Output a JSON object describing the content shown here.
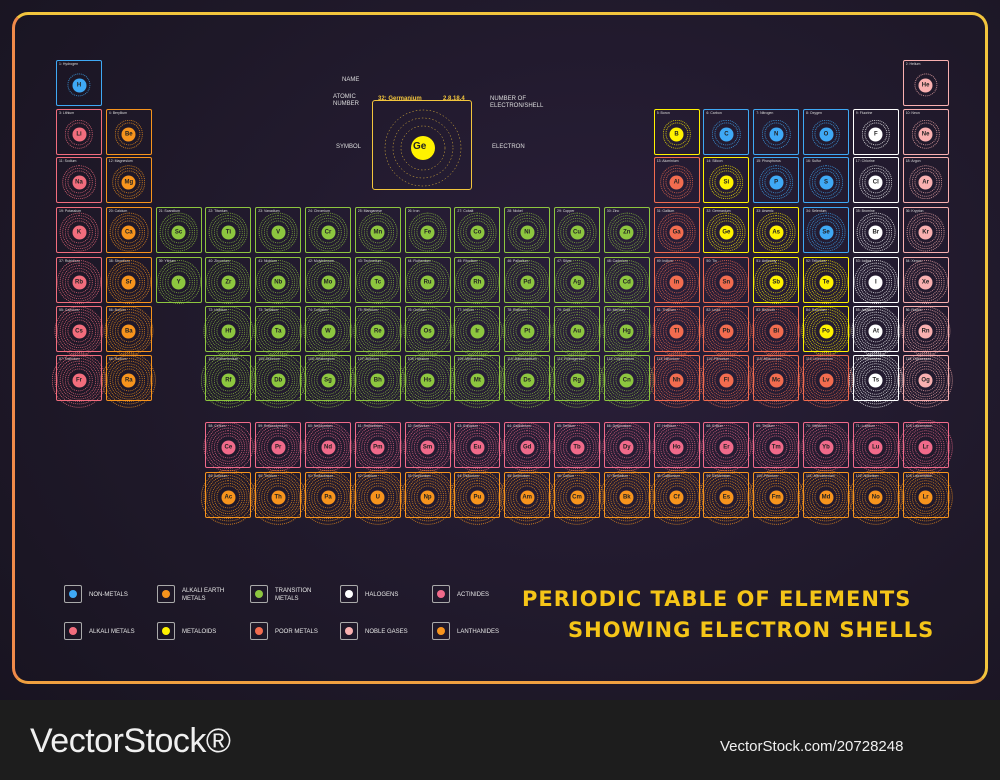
{
  "title_line1": "PERIODIC TABLE OF ELEMENTS",
  "title_line2": "SHOWING ELECTRON SHELLS",
  "watermark_left": "VectorStock®",
  "watermark_right": "VectorStock.com/20728248",
  "key": {
    "name_label": "NAME",
    "atomic_number_label": "ATOMIC NUMBER",
    "element_label": "32: Germanium",
    "shells_value": "2,8,18,4",
    "shells_label": "NUMBER OF ELECTRON/SHELL",
    "symbol_label": "SYMBOL",
    "symbol": "Ge",
    "electron_label": "ELECTRON"
  },
  "legend": [
    {
      "label": "NON-METALS",
      "color": "#3fa9f5"
    },
    {
      "label": "ALKALI EARTH METALS",
      "color": "#f7941d"
    },
    {
      "label": "TRANSITION METALS",
      "color": "#8dc63f"
    },
    {
      "label": "HALOGENS",
      "color": "#ffffff"
    },
    {
      "label": "ACTINIDES",
      "color": "#f06a8a"
    },
    {
      "label": "ALKALI METALS",
      "color": "#f26d7d"
    },
    {
      "label": "METALOIDS",
      "color": "#fff200"
    },
    {
      "label": "POOR METALS",
      "color": "#f26c4f"
    },
    {
      "label": "NOBLE GASES",
      "color": "#f9b0b0"
    },
    {
      "label": "LANTHANIDES",
      "color": "#f7941d"
    }
  ],
  "category_colors": {
    "nm": "#3fa9f5",
    "ae": "#f7941d",
    "tm": "#8dc63f",
    "ha": "#ffffff",
    "ac": "#f06a8a",
    "am": "#f26d7d",
    "md": "#fff200",
    "pm": "#f26c4f",
    "ng": "#f9b0b0",
    "la": "#f7941d"
  },
  "elements": [
    {
      "sym": "H",
      "n": 1,
      "name": "Hydrogen",
      "cat": "nm",
      "col": 1,
      "row": 1
    },
    {
      "sym": "He",
      "n": 2,
      "name": "Helium",
      "cat": "ng",
      "col": 18,
      "row": 1
    },
    {
      "sym": "Li",
      "n": 3,
      "name": "Lithium",
      "cat": "am",
      "col": 1,
      "row": 2
    },
    {
      "sym": "Be",
      "n": 4,
      "name": "Beryllium",
      "cat": "ae",
      "col": 2,
      "row": 2
    },
    {
      "sym": "B",
      "n": 5,
      "name": "Boron",
      "cat": "md",
      "col": 13,
      "row": 2
    },
    {
      "sym": "C",
      "n": 6,
      "name": "Carbon",
      "cat": "nm",
      "col": 14,
      "row": 2
    },
    {
      "sym": "N",
      "n": 7,
      "name": "Nitrogen",
      "cat": "nm",
      "col": 15,
      "row": 2
    },
    {
      "sym": "O",
      "n": 8,
      "name": "Oxygen",
      "cat": "nm",
      "col": 16,
      "row": 2
    },
    {
      "sym": "F",
      "n": 9,
      "name": "Fluorine",
      "cat": "ha",
      "col": 17,
      "row": 2
    },
    {
      "sym": "Ne",
      "n": 10,
      "name": "Neon",
      "cat": "ng",
      "col": 18,
      "row": 2
    },
    {
      "sym": "Na",
      "n": 11,
      "name": "Sodium",
      "cat": "am",
      "col": 1,
      "row": 3
    },
    {
      "sym": "Mg",
      "n": 12,
      "name": "Magnesium",
      "cat": "ae",
      "col": 2,
      "row": 3
    },
    {
      "sym": "Al",
      "n": 13,
      "name": "Aluminium",
      "cat": "pm",
      "col": 13,
      "row": 3
    },
    {
      "sym": "Si",
      "n": 14,
      "name": "Silicon",
      "cat": "md",
      "col": 14,
      "row": 3
    },
    {
      "sym": "P",
      "n": 15,
      "name": "Phosphorus",
      "cat": "nm",
      "col": 15,
      "row": 3
    },
    {
      "sym": "S",
      "n": 16,
      "name": "Sulfur",
      "cat": "nm",
      "col": 16,
      "row": 3
    },
    {
      "sym": "Cl",
      "n": 17,
      "name": "Chlorine",
      "cat": "ha",
      "col": 17,
      "row": 3
    },
    {
      "sym": "Ar",
      "n": 18,
      "name": "Argon",
      "cat": "ng",
      "col": 18,
      "row": 3
    },
    {
      "sym": "K",
      "n": 19,
      "name": "Potassium",
      "cat": "am",
      "col": 1,
      "row": 4
    },
    {
      "sym": "Ca",
      "n": 20,
      "name": "Calcium",
      "cat": "ae",
      "col": 2,
      "row": 4
    },
    {
      "sym": "Sc",
      "n": 21,
      "name": "Scandium",
      "cat": "tm",
      "col": 3,
      "row": 4
    },
    {
      "sym": "Ti",
      "n": 22,
      "name": "Titanium",
      "cat": "tm",
      "col": 4,
      "row": 4
    },
    {
      "sym": "V",
      "n": 23,
      "name": "Vanadium",
      "cat": "tm",
      "col": 5,
      "row": 4
    },
    {
      "sym": "Cr",
      "n": 24,
      "name": "Chromium",
      "cat": "tm",
      "col": 6,
      "row": 4
    },
    {
      "sym": "Mn",
      "n": 25,
      "name": "Manganese",
      "cat": "tm",
      "col": 7,
      "row": 4
    },
    {
      "sym": "Fe",
      "n": 26,
      "name": "Iron",
      "cat": "tm",
      "col": 8,
      "row": 4
    },
    {
      "sym": "Co",
      "n": 27,
      "name": "Cobalt",
      "cat": "tm",
      "col": 9,
      "row": 4
    },
    {
      "sym": "Ni",
      "n": 28,
      "name": "Nickel",
      "cat": "tm",
      "col": 10,
      "row": 4
    },
    {
      "sym": "Cu",
      "n": 29,
      "name": "Copper",
      "cat": "tm",
      "col": 11,
      "row": 4
    },
    {
      "sym": "Zn",
      "n": 30,
      "name": "Zinc",
      "cat": "tm",
      "col": 12,
      "row": 4
    },
    {
      "sym": "Ga",
      "n": 31,
      "name": "Gallium",
      "cat": "pm",
      "col": 13,
      "row": 4
    },
    {
      "sym": "Ge",
      "n": 32,
      "name": "Germanium",
      "cat": "md",
      "col": 14,
      "row": 4
    },
    {
      "sym": "As",
      "n": 33,
      "name": "Arsenic",
      "cat": "md",
      "col": 15,
      "row": 4
    },
    {
      "sym": "Se",
      "n": 34,
      "name": "Selenium",
      "cat": "nm",
      "col": 16,
      "row": 4
    },
    {
      "sym": "Br",
      "n": 35,
      "name": "Bromine",
      "cat": "ha",
      "col": 17,
      "row": 4
    },
    {
      "sym": "Kr",
      "n": 36,
      "name": "Krypton",
      "cat": "ng",
      "col": 18,
      "row": 4
    },
    {
      "sym": "Rb",
      "n": 37,
      "name": "Rubidium",
      "cat": "am",
      "col": 1,
      "row": 5
    },
    {
      "sym": "Sr",
      "n": 38,
      "name": "Strontium",
      "cat": "ae",
      "col": 2,
      "row": 5
    },
    {
      "sym": "Y",
      "n": 39,
      "name": "Yttrium",
      "cat": "tm",
      "col": 3,
      "row": 5
    },
    {
      "sym": "Zr",
      "n": 40,
      "name": "Zirconium",
      "cat": "tm",
      "col": 4,
      "row": 5
    },
    {
      "sym": "Nb",
      "n": 41,
      "name": "Niobium",
      "cat": "tm",
      "col": 5,
      "row": 5
    },
    {
      "sym": "Mo",
      "n": 42,
      "name": "Molybdenum",
      "cat": "tm",
      "col": 6,
      "row": 5
    },
    {
      "sym": "Tc",
      "n": 43,
      "name": "Technetium",
      "cat": "tm",
      "col": 7,
      "row": 5
    },
    {
      "sym": "Ru",
      "n": 44,
      "name": "Ruthenium",
      "cat": "tm",
      "col": 8,
      "row": 5
    },
    {
      "sym": "Rh",
      "n": 45,
      "name": "Rhodium",
      "cat": "tm",
      "col": 9,
      "row": 5
    },
    {
      "sym": "Pd",
      "n": 46,
      "name": "Palladium",
      "cat": "tm",
      "col": 10,
      "row": 5
    },
    {
      "sym": "Ag",
      "n": 47,
      "name": "Silver",
      "cat": "tm",
      "col": 11,
      "row": 5
    },
    {
      "sym": "Cd",
      "n": 48,
      "name": "Cadmium",
      "cat": "tm",
      "col": 12,
      "row": 5
    },
    {
      "sym": "In",
      "n": 49,
      "name": "Indium",
      "cat": "pm",
      "col": 13,
      "row": 5
    },
    {
      "sym": "Sn",
      "n": 50,
      "name": "Tin",
      "cat": "pm",
      "col": 14,
      "row": 5
    },
    {
      "sym": "Sb",
      "n": 51,
      "name": "Antimony",
      "cat": "md",
      "col": 15,
      "row": 5
    },
    {
      "sym": "Te",
      "n": 52,
      "name": "Tellurium",
      "cat": "md",
      "col": 16,
      "row": 5
    },
    {
      "sym": "I",
      "n": 53,
      "name": "Iodine",
      "cat": "ha",
      "col": 17,
      "row": 5
    },
    {
      "sym": "Xe",
      "n": 54,
      "name": "Xenon",
      "cat": "ng",
      "col": 18,
      "row": 5
    },
    {
      "sym": "Cs",
      "n": 55,
      "name": "Caesium",
      "cat": "am",
      "col": 1,
      "row": 6
    },
    {
      "sym": "Ba",
      "n": 56,
      "name": "Barium",
      "cat": "ae",
      "col": 2,
      "row": 6
    },
    {
      "sym": "Hf",
      "n": 72,
      "name": "Hafnium",
      "cat": "tm",
      "col": 4,
      "row": 6
    },
    {
      "sym": "Ta",
      "n": 73,
      "name": "Tantalum",
      "cat": "tm",
      "col": 5,
      "row": 6
    },
    {
      "sym": "W",
      "n": 74,
      "name": "Tungsten",
      "cat": "tm",
      "col": 6,
      "row": 6
    },
    {
      "sym": "Re",
      "n": 75,
      "name": "Rhenium",
      "cat": "tm",
      "col": 7,
      "row": 6
    },
    {
      "sym": "Os",
      "n": 76,
      "name": "Osmium",
      "cat": "tm",
      "col": 8,
      "row": 6
    },
    {
      "sym": "Ir",
      "n": 77,
      "name": "Iridium",
      "cat": "tm",
      "col": 9,
      "row": 6
    },
    {
      "sym": "Pt",
      "n": 78,
      "name": "Platinum",
      "cat": "tm",
      "col": 10,
      "row": 6
    },
    {
      "sym": "Au",
      "n": 79,
      "name": "Gold",
      "cat": "tm",
      "col": 11,
      "row": 6
    },
    {
      "sym": "Hg",
      "n": 80,
      "name": "Mercury",
      "cat": "tm",
      "col": 12,
      "row": 6
    },
    {
      "sym": "Tl",
      "n": 81,
      "name": "Thallium",
      "cat": "pm",
      "col": 13,
      "row": 6
    },
    {
      "sym": "Pb",
      "n": 82,
      "name": "Lead",
      "cat": "pm",
      "col": 14,
      "row": 6
    },
    {
      "sym": "Bi",
      "n": 83,
      "name": "Bismuth",
      "cat": "pm",
      "col": 15,
      "row": 6
    },
    {
      "sym": "Po",
      "n": 84,
      "name": "Polonium",
      "cat": "md",
      "col": 16,
      "row": 6
    },
    {
      "sym": "At",
      "n": 85,
      "name": "Astatine",
      "cat": "ha",
      "col": 17,
      "row": 6
    },
    {
      "sym": "Rn",
      "n": 86,
      "name": "Radon",
      "cat": "ng",
      "col": 18,
      "row": 6
    },
    {
      "sym": "Fr",
      "n": 87,
      "name": "Francium",
      "cat": "am",
      "col": 1,
      "row": 7
    },
    {
      "sym": "Ra",
      "n": 88,
      "name": "Radium",
      "cat": "ae",
      "col": 2,
      "row": 7
    },
    {
      "sym": "Rf",
      "n": 104,
      "name": "Rutherfordium",
      "cat": "tm",
      "col": 4,
      "row": 7
    },
    {
      "sym": "Db",
      "n": 105,
      "name": "Dubnium",
      "cat": "tm",
      "col": 5,
      "row": 7
    },
    {
      "sym": "Sg",
      "n": 106,
      "name": "Seaborgium",
      "cat": "tm",
      "col": 6,
      "row": 7
    },
    {
      "sym": "Bh",
      "n": 107,
      "name": "Bohrium",
      "cat": "tm",
      "col": 7,
      "row": 7
    },
    {
      "sym": "Hs",
      "n": 108,
      "name": "Hassium",
      "cat": "tm",
      "col": 8,
      "row": 7
    },
    {
      "sym": "Mt",
      "n": 109,
      "name": "Meitnerium",
      "cat": "tm",
      "col": 9,
      "row": 7
    },
    {
      "sym": "Ds",
      "n": 110,
      "name": "Darmstadtium",
      "cat": "tm",
      "col": 10,
      "row": 7
    },
    {
      "sym": "Rg",
      "n": 111,
      "name": "Roentgenium",
      "cat": "tm",
      "col": 11,
      "row": 7
    },
    {
      "sym": "Cn",
      "n": 112,
      "name": "Copernicium",
      "cat": "tm",
      "col": 12,
      "row": 7
    },
    {
      "sym": "Nh",
      "n": 113,
      "name": "Nihonium",
      "cat": "pm",
      "col": 13,
      "row": 7
    },
    {
      "sym": "Fl",
      "n": 114,
      "name": "Flerovium",
      "cat": "pm",
      "col": 14,
      "row": 7
    },
    {
      "sym": "Mc",
      "n": 115,
      "name": "Moscovium",
      "cat": "pm",
      "col": 15,
      "row": 7
    },
    {
      "sym": "Lv",
      "n": 116,
      "name": "Livermorium",
      "cat": "pm",
      "col": 16,
      "row": 7
    },
    {
      "sym": "Ts",
      "n": 117,
      "name": "Tennessine",
      "cat": "ha",
      "col": 17,
      "row": 7
    },
    {
      "sym": "Og",
      "n": 118,
      "name": "Oganesson",
      "cat": "ng",
      "col": 18,
      "row": 7
    },
    {
      "sym": "Ce",
      "n": 58,
      "name": "Cerium",
      "cat": "ac",
      "col": 4,
      "row": 9
    },
    {
      "sym": "Pr",
      "n": 59,
      "name": "Praseodymium",
      "cat": "ac",
      "col": 5,
      "row": 9
    },
    {
      "sym": "Nd",
      "n": 60,
      "name": "Neodymium",
      "cat": "ac",
      "col": 6,
      "row": 9
    },
    {
      "sym": "Pm",
      "n": 61,
      "name": "Promethium",
      "cat": "ac",
      "col": 7,
      "row": 9
    },
    {
      "sym": "Sm",
      "n": 62,
      "name": "Samarium",
      "cat": "ac",
      "col": 8,
      "row": 9
    },
    {
      "sym": "Eu",
      "n": 63,
      "name": "Europium",
      "cat": "ac",
      "col": 9,
      "row": 9
    },
    {
      "sym": "Gd",
      "n": 64,
      "name": "Gadolinium",
      "cat": "ac",
      "col": 10,
      "row": 9
    },
    {
      "sym": "Tb",
      "n": 65,
      "name": "Terbium",
      "cat": "ac",
      "col": 11,
      "row": 9
    },
    {
      "sym": "Dy",
      "n": 66,
      "name": "Dysprosium",
      "cat": "ac",
      "col": 12,
      "row": 9
    },
    {
      "sym": "Ho",
      "n": 67,
      "name": "Holmium",
      "cat": "ac",
      "col": 13,
      "row": 9
    },
    {
      "sym": "Er",
      "n": 68,
      "name": "Erbium",
      "cat": "ac",
      "col": 14,
      "row": 9
    },
    {
      "sym": "Tm",
      "n": 69,
      "name": "Thulium",
      "cat": "ac",
      "col": 15,
      "row": 9
    },
    {
      "sym": "Yb",
      "n": 70,
      "name": "Ytterbium",
      "cat": "ac",
      "col": 16,
      "row": 9
    },
    {
      "sym": "Lu",
      "n": 71,
      "name": "Lutetium",
      "cat": "ac",
      "col": 17,
      "row": 9
    },
    {
      "sym": "Lr",
      "n": 103,
      "name": "Lawrencium",
      "cat": "ac",
      "col": 18,
      "row": 9
    },
    {
      "sym": "Ac",
      "n": 89,
      "name": "Actinium",
      "cat": "la",
      "col": 4,
      "row": 10
    },
    {
      "sym": "Th",
      "n": 90,
      "name": "Thorium",
      "cat": "la",
      "col": 5,
      "row": 10
    },
    {
      "sym": "Pa",
      "n": 91,
      "name": "Protactinium",
      "cat": "la",
      "col": 6,
      "row": 10
    },
    {
      "sym": "U",
      "n": 92,
      "name": "Uranium",
      "cat": "la",
      "col": 7,
      "row": 10
    },
    {
      "sym": "Np",
      "n": 93,
      "name": "Neptunium",
      "cat": "la",
      "col": 8,
      "row": 10
    },
    {
      "sym": "Pu",
      "n": 94,
      "name": "Plutonium",
      "cat": "la",
      "col": 9,
      "row": 10
    },
    {
      "sym": "Am",
      "n": 95,
      "name": "Americium",
      "cat": "la",
      "col": 10,
      "row": 10
    },
    {
      "sym": "Cm",
      "n": 96,
      "name": "Curium",
      "cat": "la",
      "col": 11,
      "row": 10
    },
    {
      "sym": "Bk",
      "n": 97,
      "name": "Berkelium",
      "cat": "la",
      "col": 12,
      "row": 10
    },
    {
      "sym": "Cf",
      "n": 98,
      "name": "Californium",
      "cat": "la",
      "col": 13,
      "row": 10
    },
    {
      "sym": "Es",
      "n": 99,
      "name": "Einsteinium",
      "cat": "la",
      "col": 14,
      "row": 10
    },
    {
      "sym": "Fm",
      "n": 100,
      "name": "Fermium",
      "cat": "la",
      "col": 15,
      "row": 10
    },
    {
      "sym": "Md",
      "n": 101,
      "name": "Mendelevium",
      "cat": "la",
      "col": 16,
      "row": 10
    },
    {
      "sym": "No",
      "n": 102,
      "name": "Nobelium",
      "cat": "la",
      "col": 17,
      "row": 10
    },
    {
      "sym": "Lr",
      "n": 103,
      "name": "Lawrencium",
      "cat": "la",
      "col": 18,
      "row": 10
    }
  ]
}
